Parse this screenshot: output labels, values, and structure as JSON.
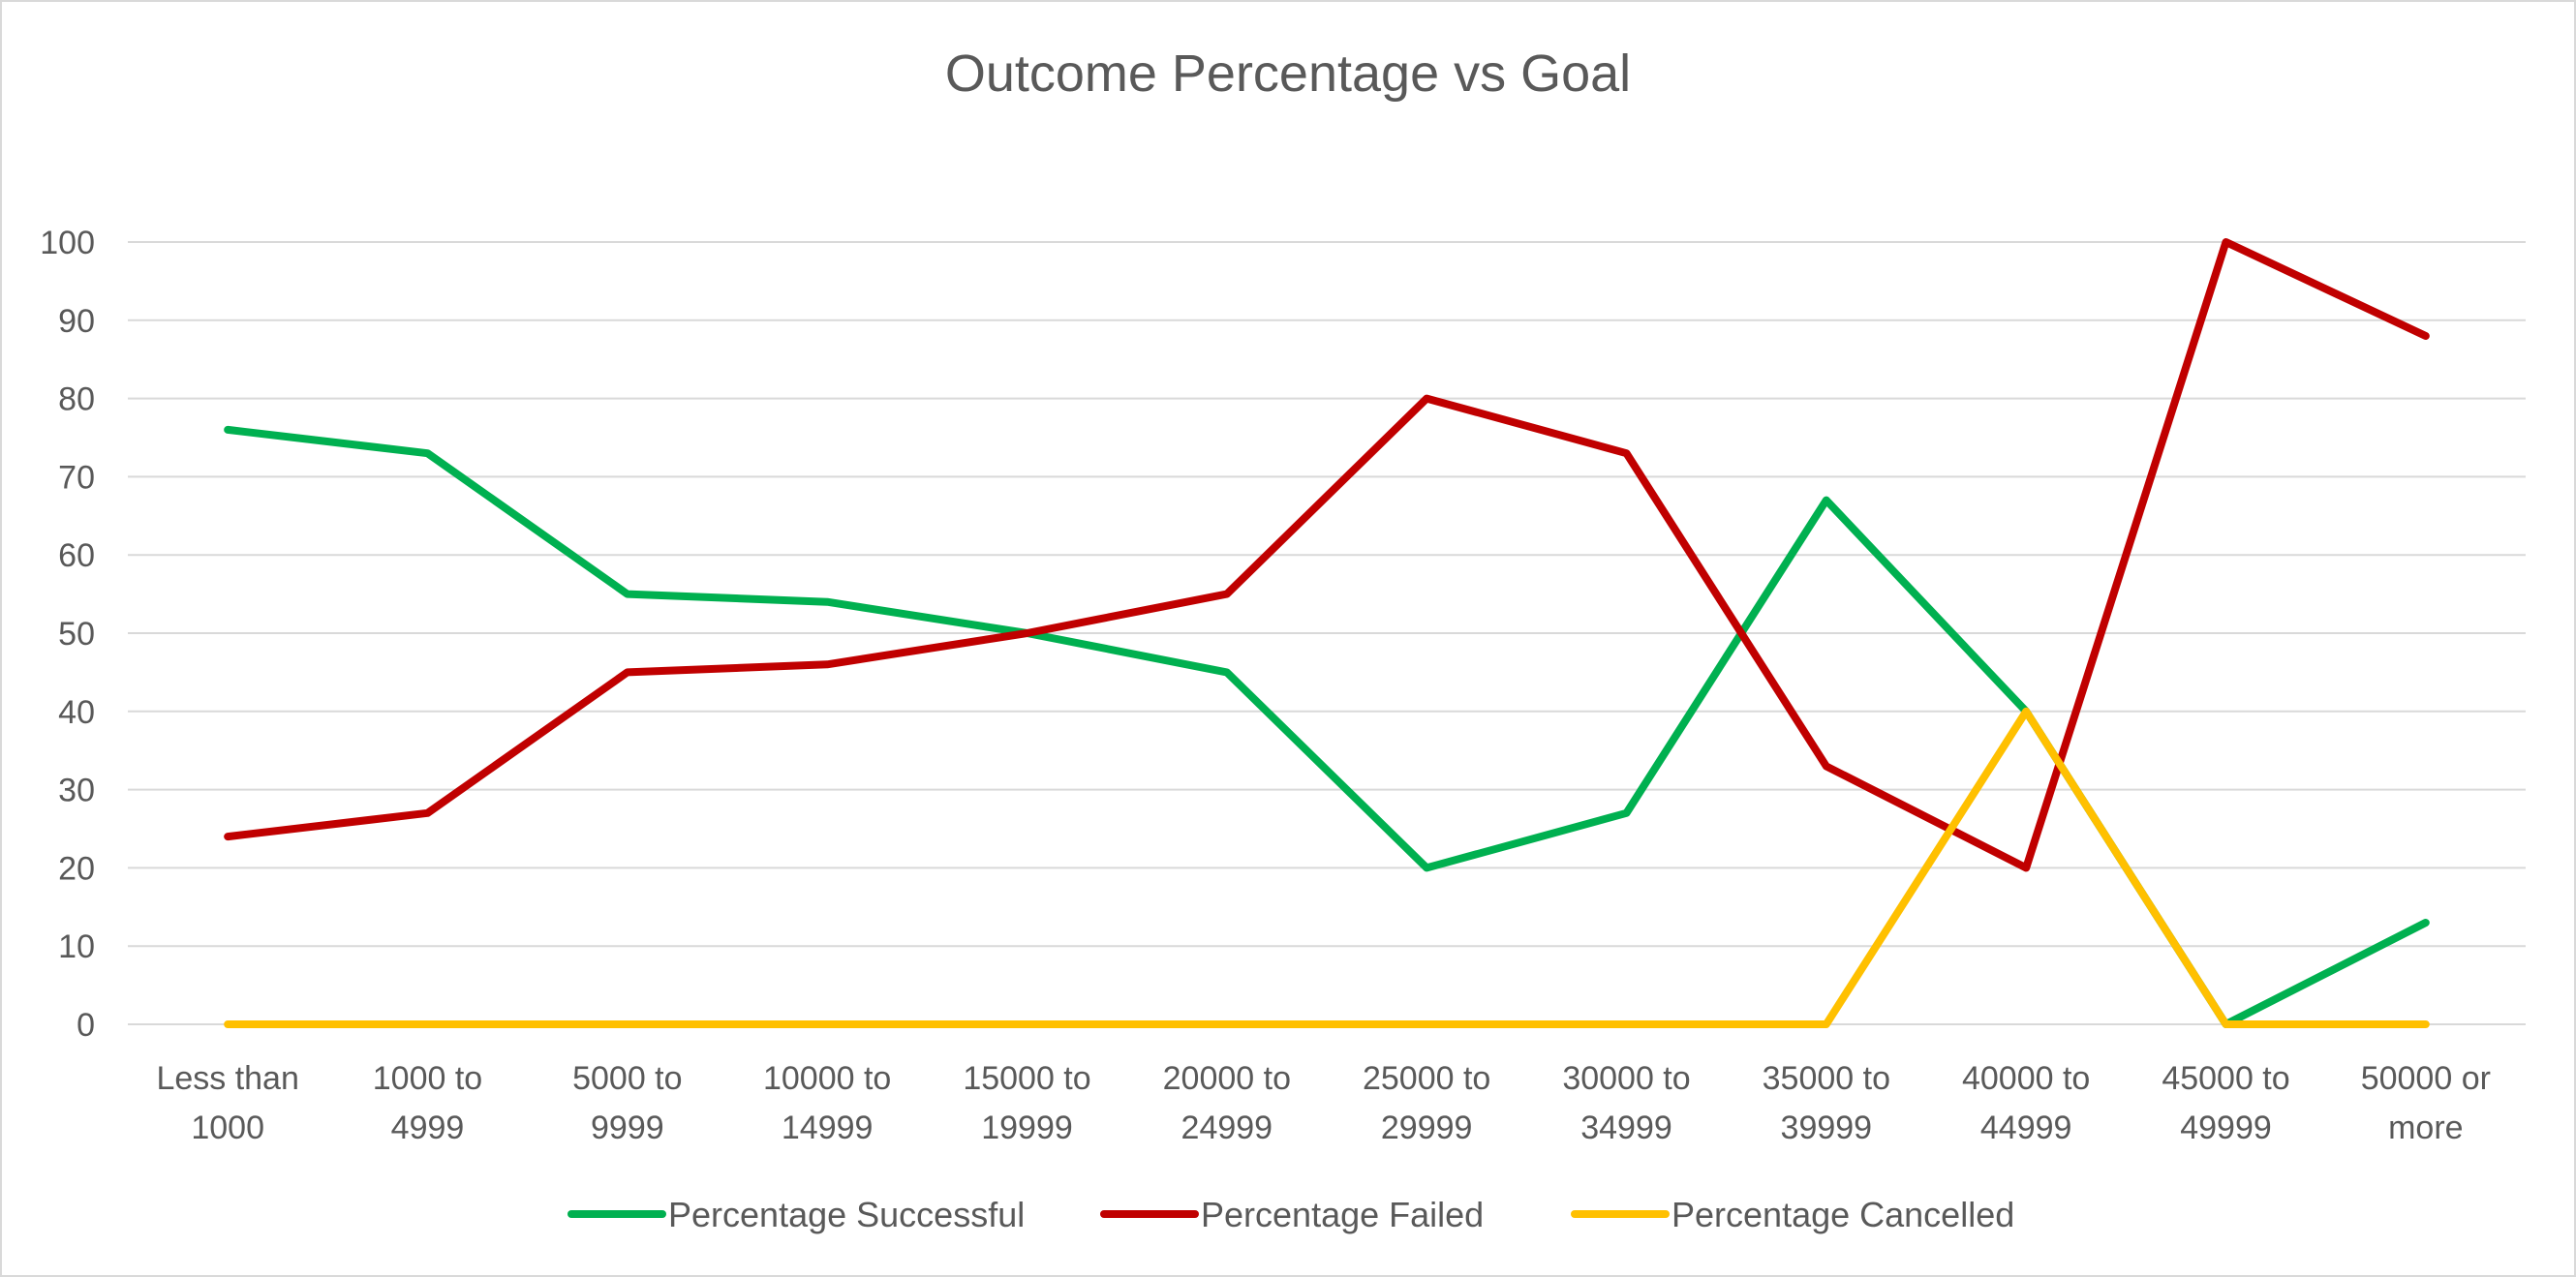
{
  "chart_data": {
    "type": "line",
    "title": "Outcome Percentage vs Goal",
    "xlabel": "",
    "ylabel": "",
    "ylim": [
      0,
      100
    ],
    "y_ticks": [
      0,
      10,
      20,
      30,
      40,
      50,
      60,
      70,
      80,
      90,
      100
    ],
    "grid": true,
    "legend_position": "bottom",
    "categories": [
      "Less than 1000",
      "1000 to 4999",
      "5000 to 9999",
      "10000 to 14999",
      "15000 to 19999",
      "20000 to 24999",
      "25000 to 29999",
      "30000 to 34999",
      "35000 to 39999",
      "40000 to 44999",
      "45000 to 49999",
      "50000 or more"
    ],
    "category_lines": [
      [
        "Less than",
        "1000"
      ],
      [
        "1000 to",
        "4999"
      ],
      [
        "5000 to",
        "9999"
      ],
      [
        "10000 to",
        "14999"
      ],
      [
        "15000 to",
        "19999"
      ],
      [
        "20000 to",
        "24999"
      ],
      [
        "25000 to",
        "29999"
      ],
      [
        "30000 to",
        "34999"
      ],
      [
        "35000 to",
        "39999"
      ],
      [
        "40000 to",
        "44999"
      ],
      [
        "45000 to",
        "49999"
      ],
      [
        "50000 or",
        "more"
      ]
    ],
    "series": [
      {
        "name": "Percentage Successful",
        "color": "#00b050",
        "values": [
          76,
          73,
          55,
          54,
          50,
          45,
          20,
          27,
          67,
          40,
          0,
          13
        ]
      },
      {
        "name": "Percentage Failed",
        "color": "#c00000",
        "values": [
          24,
          27,
          45,
          46,
          50,
          55,
          80,
          73,
          33,
          20,
          100,
          88
        ]
      },
      {
        "name": "Percentage Cancelled",
        "color": "#ffc000",
        "values": [
          0,
          0,
          0,
          0,
          0,
          0,
          0,
          0,
          0,
          40,
          0,
          0
        ]
      }
    ]
  }
}
